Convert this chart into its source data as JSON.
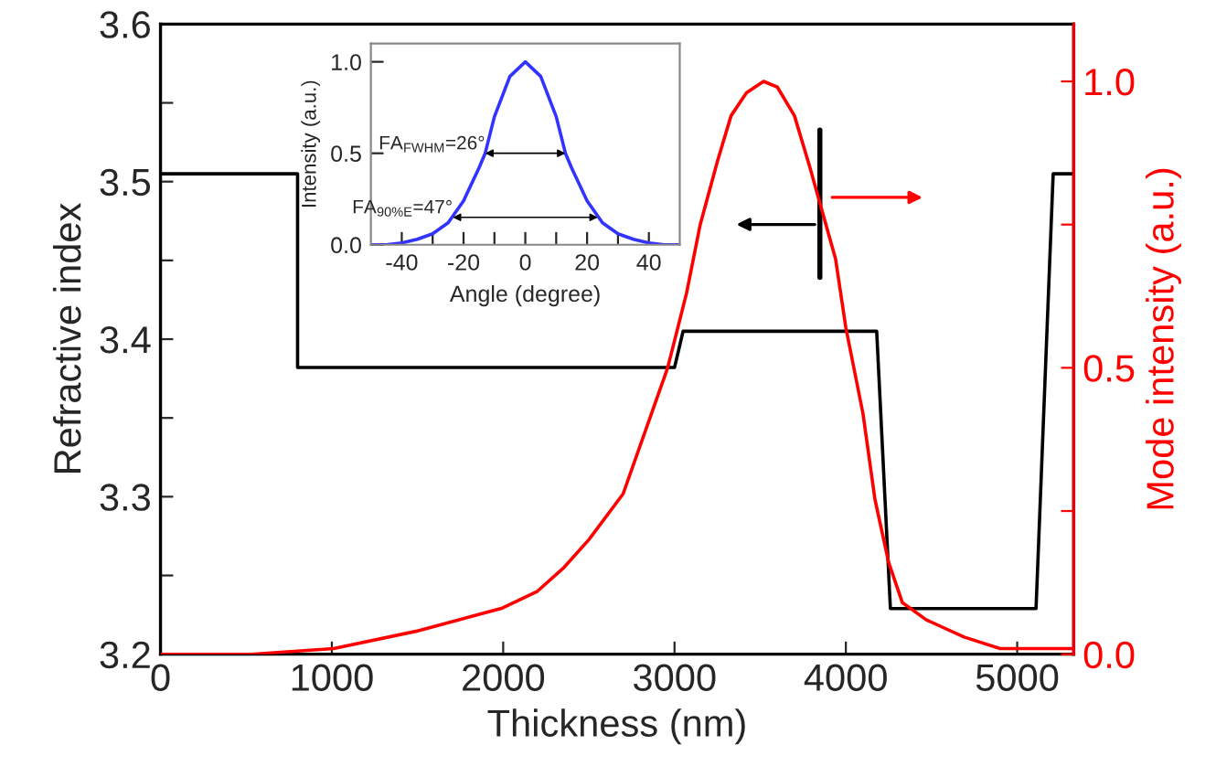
{
  "chart_data": [
    {
      "type": "line",
      "xlabel": "Thickness (nm)",
      "ylabel": "Refractive index",
      "y2label": "Mode intensity (a.u.)",
      "xlim": [
        0,
        5330
      ],
      "xticks": [
        0,
        1000,
        2000,
        3000,
        4000,
        5000
      ],
      "ylim": [
        3.2,
        3.6
      ],
      "yticks": [
        3.2,
        {
          "value": 3.25,
          "label": null
        },
        3.3,
        {
          "value": 3.35,
          "label": null
        },
        3.4,
        {
          "value": 3.45,
          "label": null
        },
        3.5,
        {
          "value": 3.55,
          "label": null
        },
        3.6
      ],
      "y2lim": [
        0,
        1.1
      ],
      "y2ticks": [
        {
          "value": 0,
          "label": "0.0"
        },
        {
          "value": 0.25,
          "label": null
        },
        0.5,
        {
          "value": 0.75,
          "label": null
        },
        {
          "value": 1,
          "label": "1.0"
        }
      ],
      "grid": false,
      "marker": "none",
      "line_style": "solid",
      "series": [
        {
          "color": "#000000",
          "x": [
            0,
            800,
            800,
            3000,
            3050,
            4180,
            4260,
            5110,
            5210,
            5330
          ],
          "values": [
            3.505,
            3.505,
            3.382,
            3.382,
            3.405,
            3.405,
            3.229,
            3.229,
            3.505,
            3.505
          ]
        },
        {
          "color": "#ff0000",
          "axis": "y2",
          "x": [
            0,
            530,
            1010,
            1490,
            1990,
            2200,
            2350,
            2500,
            2700,
            2960,
            3070,
            3150,
            3250,
            3330,
            3420,
            3520,
            3600,
            3700,
            3790,
            3940,
            4000,
            4100,
            4170,
            4250,
            4330,
            4470,
            4690,
            4900,
            5100,
            5330
          ],
          "values": [
            0,
            0,
            0.01,
            0.04,
            0.08,
            0.11,
            0.15,
            0.2,
            0.28,
            0.5,
            0.63,
            0.75,
            0.86,
            0.94,
            0.98,
            1.0,
            0.99,
            0.94,
            0.85,
            0.69,
            0.57,
            0.42,
            0.27,
            0.16,
            0.09,
            0.06,
            0.03,
            0.01,
            0.01,
            0.01
          ]
        }
      ]
    },
    {
      "type": "line",
      "xlabel": "Angle (degree)",
      "ylabel": "Intensity (a.u.)",
      "xlim": [
        -50,
        50
      ],
      "xticks": [
        -40,
        {
          "value": -30,
          "label": null
        },
        -20,
        {
          "value": -10,
          "label": null
        },
        0,
        {
          "value": 10,
          "label": null
        },
        20,
        {
          "value": 30,
          "label": null
        },
        40
      ],
      "ylim": [
        0,
        1.1
      ],
      "yticks": [
        {
          "value": 0,
          "label": "0.0"
        },
        0.5,
        {
          "value": 1,
          "label": "1.0"
        }
      ],
      "grid": false,
      "marker": "none",
      "line_style": "solid",
      "series": [
        {
          "color": "#3333ff",
          "x": [
            -50,
            -45,
            -40,
            -35,
            -30,
            -25,
            -20,
            -15,
            -13,
            -10,
            -5,
            0,
            5,
            10,
            13,
            15,
            20,
            25,
            30,
            35,
            40,
            45,
            50
          ],
          "values": [
            0,
            0,
            0.01,
            0.03,
            0.06,
            0.12,
            0.24,
            0.42,
            0.5,
            0.7,
            0.92,
            1.0,
            0.92,
            0.7,
            0.5,
            0.42,
            0.24,
            0.12,
            0.06,
            0.03,
            0.01,
            0,
            0
          ]
        }
      ],
      "annotations": [
        {
          "text": "FA$_{FWHM}$=26°",
          "x": -13,
          "y": 0.5
        },
        {
          "text": "FA$_{90%E}$=47°",
          "x": -23.5,
          "y": 0.15
        }
      ]
    }
  ]
}
